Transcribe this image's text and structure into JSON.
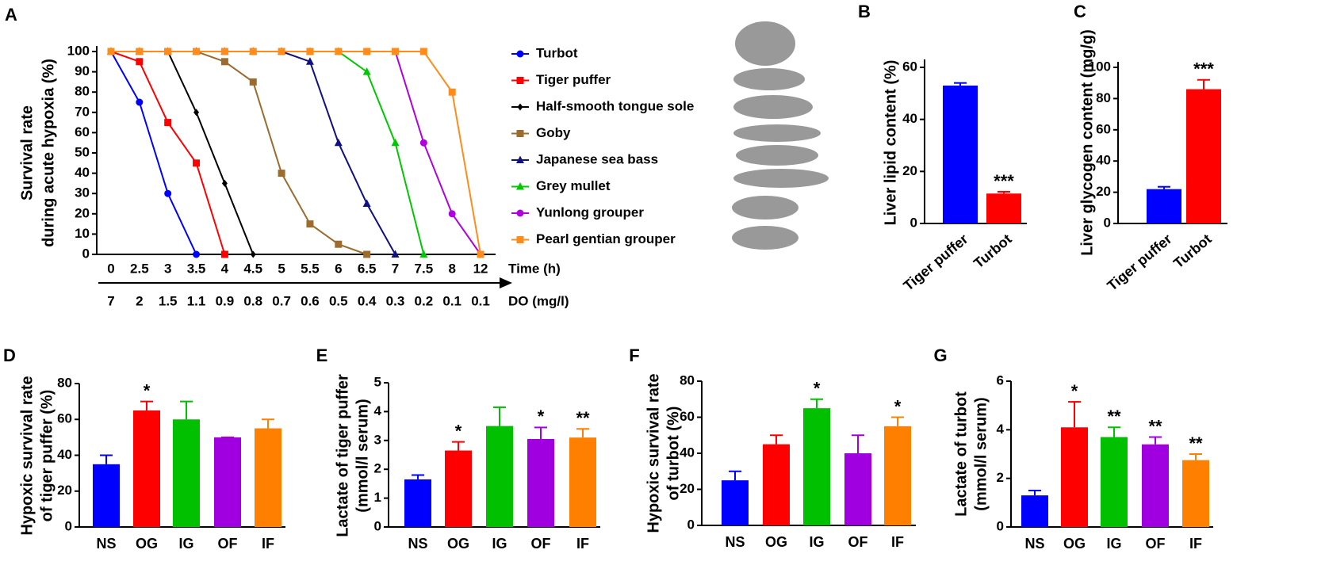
{
  "chart_data": [
    {
      "type": "line",
      "panel": "A",
      "y_label": [
        "Survival rate",
        "during acute hypoxia (%)"
      ],
      "x_label": "Time (h)",
      "x2_label": "DO (mg/l)",
      "categories": [
        "0",
        "2.5",
        "3",
        "3.5",
        "4",
        "4.5",
        "5",
        "5.5",
        "6",
        "6.5",
        "7",
        "7.5",
        "8",
        "12"
      ],
      "x2_categories": [
        7,
        2,
        1.5,
        1.1,
        0.9,
        0.8,
        0.7,
        0.6,
        0.5,
        0.4,
        0.3,
        0.2,
        0.1,
        0.1
      ],
      "ylim": [
        0,
        100
      ],
      "yticks": [
        0,
        10,
        20,
        30,
        40,
        50,
        60,
        70,
        80,
        90,
        100
      ],
      "series": [
        {
          "name": "Turbot",
          "color": "#0000ff",
          "marker": "circle",
          "values": [
            100,
            75,
            30,
            0,
            null,
            null,
            null,
            null,
            null,
            null,
            null,
            null,
            null,
            null
          ]
        },
        {
          "name": "Tiger puffer",
          "color": "#ff0000",
          "marker": "square",
          "values": [
            100,
            95,
            65,
            45,
            0,
            null,
            null,
            null,
            null,
            null,
            null,
            null,
            null,
            null
          ]
        },
        {
          "name": "Half-smooth tongue sole",
          "color": "#000000",
          "marker": "diamond",
          "values": [
            100,
            100,
            100,
            70,
            35,
            0,
            null,
            null,
            null,
            null,
            null,
            null,
            null,
            null
          ]
        },
        {
          "name": "Goby",
          "color": "#9c6b2e",
          "marker": "square",
          "values": [
            100,
            100,
            100,
            100,
            95,
            85,
            40,
            15,
            5,
            0,
            null,
            null,
            null,
            null
          ]
        },
        {
          "name": "Japanese sea bass",
          "color": "#101080",
          "marker": "triangle",
          "values": [
            100,
            100,
            100,
            100,
            100,
            100,
            100,
            95,
            55,
            25,
            0,
            null,
            null,
            null
          ]
        },
        {
          "name": "Grey mullet",
          "color": "#00c800",
          "marker": "triangle",
          "values": [
            100,
            100,
            100,
            100,
            100,
            100,
            100,
            100,
            100,
            90,
            55,
            0,
            null,
            null
          ]
        },
        {
          "name": "Yunlong grouper",
          "color": "#b000e0",
          "marker": "circle",
          "values": [
            100,
            100,
            100,
            100,
            100,
            100,
            100,
            100,
            100,
            100,
            100,
            55,
            20,
            0
          ]
        },
        {
          "name": "Pearl gentian grouper",
          "color": "#ff8c1a",
          "marker": "square",
          "values": [
            100,
            100,
            100,
            100,
            100,
            100,
            100,
            100,
            100,
            100,
            100,
            100,
            80,
            0
          ]
        }
      ]
    },
    {
      "type": "bar",
      "panel": "B",
      "y_label": [
        "Liver lipid content (%)"
      ],
      "categories": [
        "Tiger puffer",
        "Turbot"
      ],
      "values": [
        53,
        11.5
      ],
      "errors": [
        1,
        0.7
      ],
      "colors": [
        "#0000ff",
        "#ff0000"
      ],
      "significance": [
        null,
        "***"
      ],
      "ylim": [
        0,
        60
      ],
      "yticks": [
        0,
        20,
        40,
        60
      ]
    },
    {
      "type": "bar",
      "panel": "C",
      "y_label": [
        "Liver glycogen content (mg/g)"
      ],
      "categories": [
        "Tiger puffer",
        "Turbot"
      ],
      "values": [
        22,
        86
      ],
      "errors": [
        1.5,
        6
      ],
      "colors": [
        "#0000ff",
        "#ff0000"
      ],
      "significance": [
        null,
        "***"
      ],
      "ylim": [
        0,
        100
      ],
      "yticks": [
        0,
        20,
        40,
        60,
        80,
        100
      ]
    },
    {
      "type": "bar",
      "panel": "D",
      "y_label": [
        "Hypoxic survival rate",
        "of tiger puffer (%)"
      ],
      "categories": [
        "NS",
        "OG",
        "IG",
        "OF",
        "IF"
      ],
      "values": [
        35,
        65,
        60,
        50,
        55
      ],
      "errors": [
        5,
        5,
        10,
        0,
        5
      ],
      "colors": [
        "#0000ff",
        "#ff0000",
        "#00c000",
        "#a000e0",
        "#ff8000"
      ],
      "significance": [
        null,
        "*",
        null,
        null,
        null
      ],
      "ylim": [
        0,
        80
      ],
      "yticks": [
        0,
        20,
        40,
        60,
        80
      ]
    },
    {
      "type": "bar",
      "panel": "E",
      "y_label": [
        "Lactate of tiger puffer",
        "(mmol/l serum)"
      ],
      "categories": [
        "NS",
        "OG",
        "IG",
        "OF",
        "IF"
      ],
      "values": [
        1.65,
        2.65,
        3.5,
        3.05,
        3.1
      ],
      "errors": [
        0.15,
        0.3,
        0.65,
        0.4,
        0.3
      ],
      "colors": [
        "#0000ff",
        "#ff0000",
        "#00c000",
        "#a000e0",
        "#ff8000"
      ],
      "significance": [
        null,
        "*",
        null,
        "*",
        "**"
      ],
      "ylim": [
        0,
        5
      ],
      "yticks": [
        0,
        1,
        2,
        3,
        4,
        5
      ]
    },
    {
      "type": "bar",
      "panel": "F",
      "y_label": [
        "Hypoxic survival rate",
        "of turbot (%)"
      ],
      "categories": [
        "NS",
        "OG",
        "IG",
        "OF",
        "IF"
      ],
      "values": [
        25,
        45,
        65,
        40,
        55
      ],
      "errors": [
        5,
        5,
        5,
        10,
        5
      ],
      "colors": [
        "#0000ff",
        "#ff0000",
        "#00c000",
        "#a000e0",
        "#ff8000"
      ],
      "significance": [
        null,
        null,
        "*",
        null,
        "*"
      ],
      "ylim": [
        0,
        80
      ],
      "yticks": [
        0,
        20,
        40,
        60,
        80
      ]
    },
    {
      "type": "bar",
      "panel": "G",
      "y_label": [
        "Lactate of turbot",
        "(mmol/l serum)"
      ],
      "categories": [
        "NS",
        "OG",
        "IG",
        "OF",
        "IF"
      ],
      "values": [
        1.3,
        4.1,
        3.7,
        3.4,
        2.75
      ],
      "errors": [
        0.2,
        1.05,
        0.4,
        0.3,
        0.25
      ],
      "colors": [
        "#0000ff",
        "#ff0000",
        "#00c000",
        "#a000e0",
        "#ff8000"
      ],
      "significance": [
        null,
        "*",
        "**",
        "**",
        "**"
      ],
      "ylim": [
        0,
        6
      ],
      "yticks": [
        0,
        2,
        4,
        6
      ]
    }
  ]
}
